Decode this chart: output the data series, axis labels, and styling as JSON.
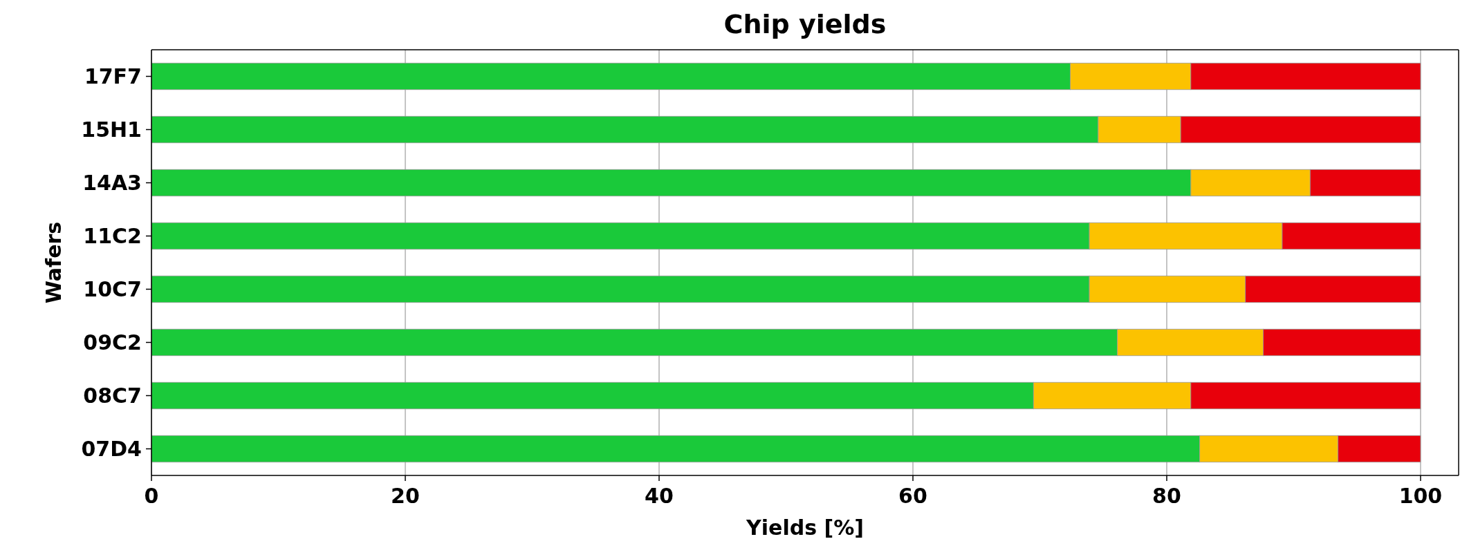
{
  "chart_data": {
    "type": "bar",
    "orientation": "horizontal",
    "stacked": true,
    "title": "Chip yields",
    "xlabel": "Yields [%]",
    "ylabel": "Wafers",
    "categories": [
      "17F7",
      "15H1",
      "14A3",
      "11C2",
      "10C7",
      "09C2",
      "08C7",
      "07D4"
    ],
    "series": [
      {
        "color": "#1ac93a",
        "values": [
          72.4,
          74.6,
          81.9,
          73.9,
          73.9,
          76.1,
          69.5,
          82.6
        ]
      },
      {
        "color": "#fcc200",
        "values": [
          9.5,
          6.5,
          9.4,
          15.2,
          12.3,
          11.5,
          12.4,
          10.9
        ]
      },
      {
        "color": "#e8000b",
        "values": [
          18.1,
          18.9,
          8.7,
          10.9,
          13.8,
          12.4,
          18.1,
          6.5
        ]
      }
    ],
    "xlim": [
      0,
      103
    ],
    "xticks": [
      0,
      20,
      40,
      60,
      80,
      100
    ],
    "grid": "x"
  }
}
